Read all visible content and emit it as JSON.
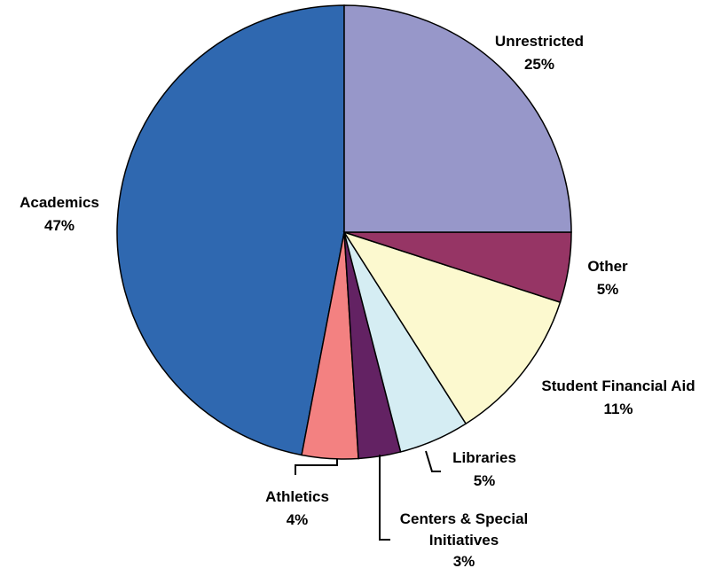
{
  "chart_data": {
    "type": "pie",
    "categories": [
      "Unrestricted",
      "Other",
      "Student Financial Aid",
      "Libraries",
      "Centers & Special Initiatives",
      "Athletics",
      "Academics"
    ],
    "values": [
      25,
      5,
      11,
      5,
      3,
      4,
      47
    ],
    "value_labels": [
      "25%",
      "5%",
      "11%",
      "5%",
      "3%",
      "4%",
      "47%"
    ],
    "colors": [
      "#9797c9",
      "#963565",
      "#fcf9cf",
      "#d5edf3",
      "#632263",
      "#f38181",
      "#2f68b0"
    ]
  }
}
